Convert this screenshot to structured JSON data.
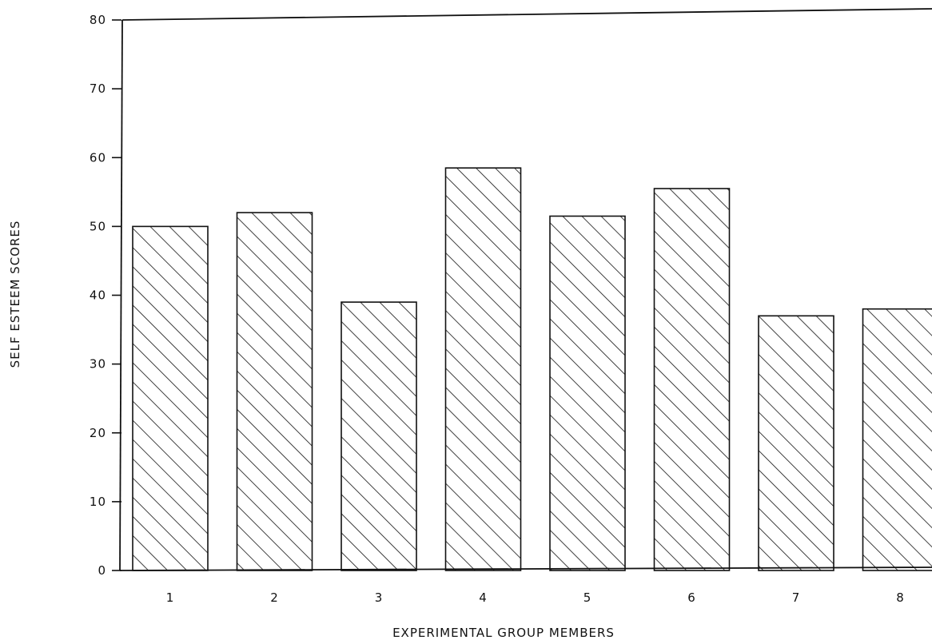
{
  "chart_data": {
    "type": "bar",
    "title": "",
    "xlabel": "EXPERIMENTAL GROUP MEMBERS",
    "ylabel": "SELF ESTEEM SCORES",
    "categories": [
      "1",
      "2",
      "3",
      "4",
      "5",
      "6",
      "7",
      "8"
    ],
    "values": [
      50,
      52,
      39,
      58.5,
      51.5,
      55.5,
      37,
      38
    ],
    "ylim": [
      0,
      80
    ],
    "yticks": [
      "0",
      "10",
      "20",
      "30",
      "40",
      "50",
      "60",
      "70",
      "80"
    ],
    "grid": false,
    "legend": "none",
    "bar_fill": "diagonal hatch",
    "colors": {
      "bar_stroke": "#111111",
      "hatch": "#111111",
      "background": "#ffffff"
    }
  }
}
